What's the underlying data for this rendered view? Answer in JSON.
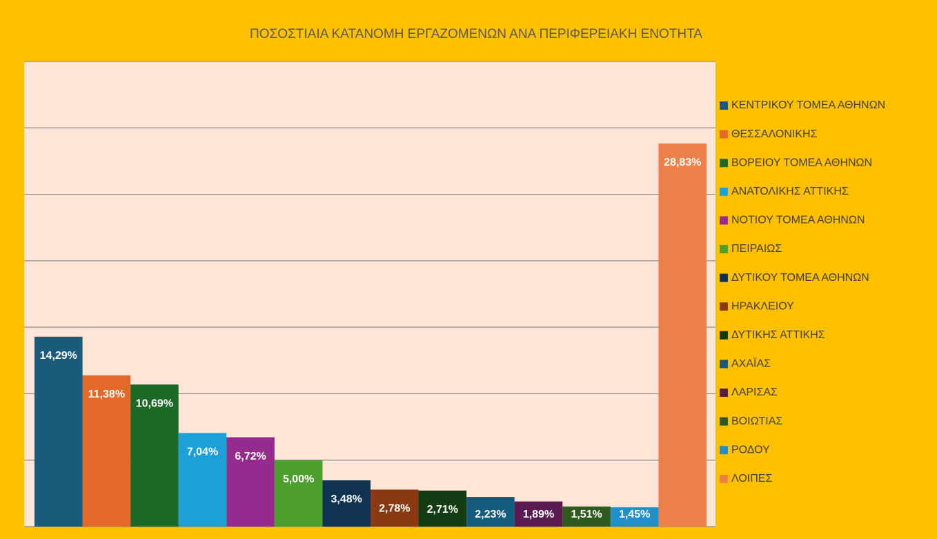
{
  "chart_data": {
    "type": "bar",
    "title": "ΠΟΣΟΣΤΙΑΙΑ ΚΑΤΑΝΟΜΗ ΕΡΓΑΖΟΜΕΝΩΝ ΑΝΑ ΠΕΡΙΦΕΡΕΙΑΚΗ ΕΝΟΤΗΤΑ",
    "categories": [
      "ΚΕΝΤΡΙΚΟΥ ΤΟΜΕΑ ΑΘΗΝΩΝ",
      "ΘΕΣΣΑΛΟΝΙΚΗΣ",
      "ΒΟΡΕΙΟΥ ΤΟΜΕΑ ΑΘΗΝΩΝ",
      "ΑΝΑΤΟΛΙΚΗΣ ΑΤΤΙΚΗΣ",
      "ΝΟΤΙΟΥ ΤΟΜΕΑ ΑΘΗΝΩΝ",
      "ΠΕΙΡΑΙΩΣ",
      "ΔΥΤΙΚΟΥ ΤΟΜΕΑ ΑΘΗΝΩΝ",
      "ΗΡΑΚΛΕΙΟΥ",
      "ΔΥΤΙΚΗΣ ΑΤΤΙΚΗΣ",
      "ΑΧΑΪΑΣ",
      "ΛΑΡΙΣΑΣ",
      "ΒΟΙΩΤΙΑΣ",
      "ΡΟΔΟΥ",
      "ΛΟΙΠΕΣ"
    ],
    "values": [
      14.29,
      11.38,
      10.69,
      7.04,
      6.72,
      5.0,
      3.48,
      2.78,
      2.71,
      2.23,
      1.89,
      1.51,
      1.45,
      28.83
    ],
    "value_labels": [
      "14,29%",
      "11,38%",
      "10,69%",
      "7,04%",
      "6,72%",
      "5,00%",
      "3,48%",
      "2,78%",
      "2,71%",
      "2,23%",
      "1,89%",
      "1,51%",
      "1,45%",
      "28,83%"
    ],
    "colors": [
      "#1a5a7a",
      "#e2692a",
      "#1c6a26",
      "#1ca0d8",
      "#962b8e",
      "#4c9f2c",
      "#0f3350",
      "#8a3a12",
      "#153b12",
      "#145b7c",
      "#5a1b50",
      "#2f5a1d",
      "#2290c8",
      "#ec8048"
    ],
    "ylim": [
      0,
      35
    ],
    "yticks": [
      0,
      5,
      10,
      15,
      20,
      25,
      30,
      35
    ],
    "grid": true,
    "legend": "right"
  }
}
